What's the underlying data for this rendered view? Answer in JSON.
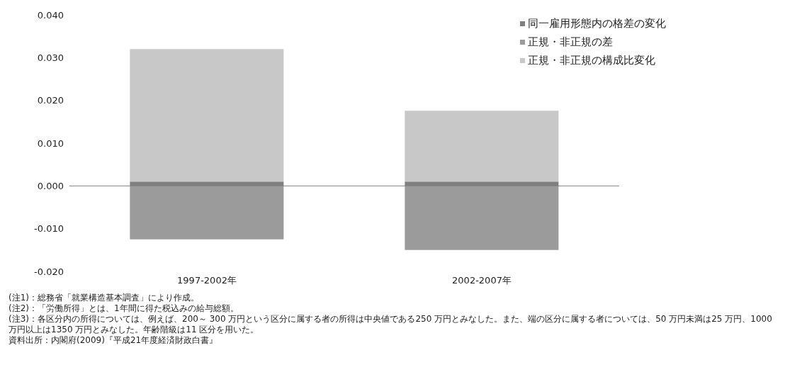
{
  "chart_data": {
    "type": "bar",
    "stacked": true,
    "categories": [
      "1997-2002年",
      "2002-2007年"
    ],
    "series": [
      {
        "name": "同一雇用形態内の格差の変化",
        "color": "#7f7f7f",
        "values": [
          0.001,
          0.001
        ]
      },
      {
        "name": "正規・非正規の差",
        "color": "#9b9b9b",
        "values": [
          -0.0125,
          -0.015
        ]
      },
      {
        "name": "正規・非正規の構成比変化",
        "color": "#c8c8c8",
        "values": [
          0.031,
          0.0166
        ]
      }
    ],
    "ylim": [
      -0.02,
      0.04
    ],
    "yticks": [
      {
        "value": -0.02,
        "label": "-0.020"
      },
      {
        "value": -0.01,
        "label": "-0.010"
      },
      {
        "value": 0,
        "label": "0.000"
      },
      {
        "value": 0.01,
        "label": "0.010"
      },
      {
        "value": 0.02,
        "label": "0.020"
      },
      {
        "value": 0.03,
        "label": "0.030"
      },
      {
        "value": 0.04,
        "label": "0.040"
      }
    ],
    "ref_lines": [
      {
        "axis": "y",
        "value": 0,
        "color": "#808080"
      }
    ],
    "grid": false,
    "legend": "top right",
    "annotations": [
      "(注1)：総務省「就業構造基本調査」により作成。",
      "(注2)：「労働所得」とは、1年間に得た税込みの給与総額。",
      "(注3)：各区分内の所得については、例えば、200～ 300 万円という区分に属する者の所得は中央値である250 万円とみなした。また、端の区分に属する者については、50 万円未満は25 万円、1000 万円以上は1350 万円とみなした。年齢階級は11 区分を用いた。",
      "資料出所：内閣府(2009)『平成21年度経済財政白書』"
    ]
  }
}
